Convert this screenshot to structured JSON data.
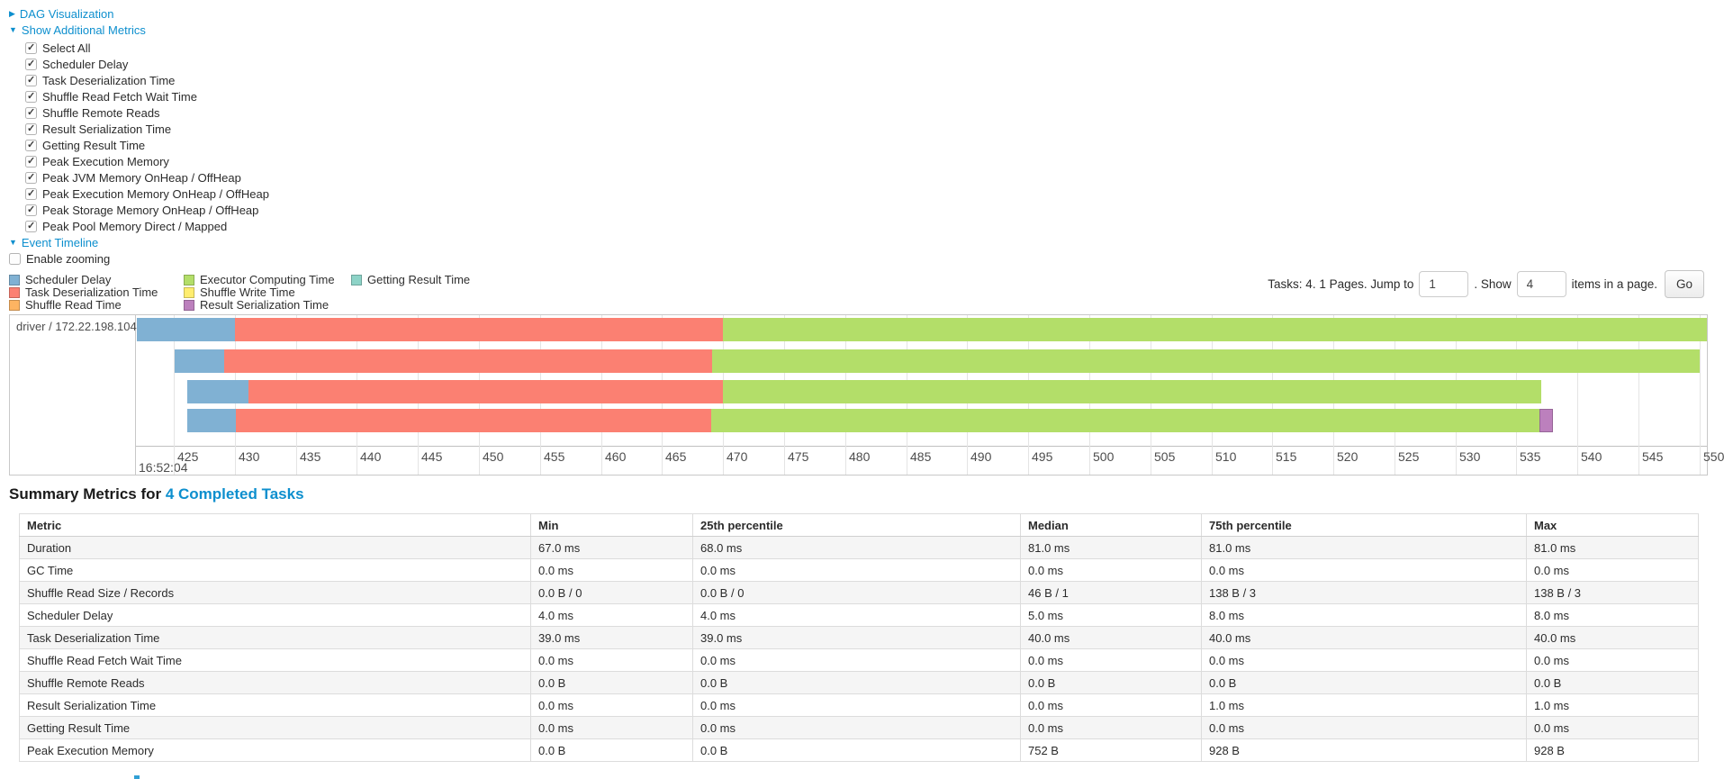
{
  "colors": {
    "link": "#0d8fce",
    "scheduler_delay": "#80B1D3",
    "task_deserialization": "#FB8072",
    "shuffle_read": "#FDB462",
    "executor_computing": "#B3DE69",
    "shuffle_write": "#FFED6F",
    "result_serialization": "#BC80BD",
    "getting_result": "#8DD3C7"
  },
  "sections": {
    "dag": {
      "label": "DAG Visualization",
      "state": "collapsed"
    },
    "additional_metrics": {
      "label": "Show Additional Metrics",
      "state": "expanded"
    },
    "event_timeline": {
      "label": "Event Timeline",
      "state": "expanded"
    }
  },
  "metric_checkboxes": [
    {
      "label": "Select All",
      "checked": true
    },
    {
      "label": "Scheduler Delay",
      "checked": true
    },
    {
      "label": "Task Deserialization Time",
      "checked": true
    },
    {
      "label": "Shuffle Read Fetch Wait Time",
      "checked": true
    },
    {
      "label": "Shuffle Remote Reads",
      "checked": true
    },
    {
      "label": "Result Serialization Time",
      "checked": true
    },
    {
      "label": "Getting Result Time",
      "checked": true
    },
    {
      "label": "Peak Execution Memory",
      "checked": true
    },
    {
      "label": "Peak JVM Memory OnHeap / OffHeap",
      "checked": true
    },
    {
      "label": "Peak Execution Memory OnHeap / OffHeap",
      "checked": true
    },
    {
      "label": "Peak Storage Memory OnHeap / OffHeap",
      "checked": true
    },
    {
      "label": "Peak Pool Memory Direct / Mapped",
      "checked": true
    }
  ],
  "enable_zooming": {
    "label": "Enable zooming",
    "checked": false
  },
  "legend": {
    "columns": [
      [
        {
          "key": "scheduler_delay",
          "label": "Scheduler Delay"
        },
        {
          "key": "task_deserialization",
          "label": "Task Deserialization Time"
        },
        {
          "key": "shuffle_read",
          "label": "Shuffle Read Time"
        }
      ],
      [
        {
          "key": "executor_computing",
          "label": "Executor Computing Time"
        },
        {
          "key": "shuffle_write",
          "label": "Shuffle Write Time"
        },
        {
          "key": "result_serialization",
          "label": "Result Serialization Time"
        }
      ],
      [
        {
          "key": "getting_result",
          "label": "Getting Result Time"
        }
      ]
    ]
  },
  "pagination": {
    "tasks_text": "Tasks: 4. 1 Pages. Jump to",
    "jump_value": "1",
    "show_text": ". Show",
    "show_value": "4",
    "items_text": "items in a page.",
    "go_label": "Go"
  },
  "chart_data": {
    "type": "timeline",
    "group_label": "driver / 172.22.198.104",
    "axis": {
      "min": 421.9,
      "max": 550.6,
      "tick_start": 425,
      "tick_end": 550,
      "tick_step": 5,
      "start_time_label": "16:52:04"
    },
    "tasks": [
      {
        "segments": [
          {
            "type": "scheduler_delay",
            "start": 422.0,
            "end": 430.0
          },
          {
            "type": "task_deserialization",
            "start": 430.0,
            "end": 470.0
          },
          {
            "type": "executor_computing",
            "start": 470.0,
            "end": 551.5
          }
        ]
      },
      {
        "segments": [
          {
            "type": "scheduler_delay",
            "start": 425.1,
            "end": 429.1
          },
          {
            "type": "task_deserialization",
            "start": 429.1,
            "end": 469.1
          },
          {
            "type": "executor_computing",
            "start": 469.1,
            "end": 550.0
          }
        ]
      },
      {
        "segments": [
          {
            "type": "scheduler_delay",
            "start": 426.1,
            "end": 431.1
          },
          {
            "type": "task_deserialization",
            "start": 431.1,
            "end": 470.0
          },
          {
            "type": "executor_computing",
            "start": 470.0,
            "end": 537.0
          }
        ]
      },
      {
        "segments": [
          {
            "type": "scheduler_delay",
            "start": 426.1,
            "end": 430.1
          },
          {
            "type": "task_deserialization",
            "start": 430.1,
            "end": 469.0
          },
          {
            "type": "executor_computing",
            "start": 469.0,
            "end": 536.9
          },
          {
            "type": "result_serialization",
            "start": 536.9,
            "end": 538.0
          }
        ]
      }
    ]
  },
  "summary": {
    "title_prefix": "Summary Metrics for ",
    "title_link": "4 Completed Tasks",
    "table": {
      "columns": [
        "Metric",
        "Min",
        "25th percentile",
        "Median",
        "75th percentile",
        "Max"
      ],
      "rows": [
        {
          "metric": "Duration",
          "values": [
            "67.0 ms",
            "68.0 ms",
            "81.0 ms",
            "81.0 ms",
            "81.0 ms"
          ]
        },
        {
          "metric": "GC Time",
          "values": [
            "0.0 ms",
            "0.0 ms",
            "0.0 ms",
            "0.0 ms",
            "0.0 ms"
          ]
        },
        {
          "metric": "Shuffle Read Size / Records",
          "values": [
            "0.0 B / 0",
            "0.0 B / 0",
            "46 B / 1",
            "138 B / 3",
            "138 B / 3"
          ]
        },
        {
          "metric": "Scheduler Delay",
          "values": [
            "4.0 ms",
            "4.0 ms",
            "5.0 ms",
            "8.0 ms",
            "8.0 ms"
          ]
        },
        {
          "metric": "Task Deserialization Time",
          "values": [
            "39.0 ms",
            "39.0 ms",
            "40.0 ms",
            "40.0 ms",
            "40.0 ms"
          ]
        },
        {
          "metric": "Shuffle Read Fetch Wait Time",
          "values": [
            "0.0 ms",
            "0.0 ms",
            "0.0 ms",
            "0.0 ms",
            "0.0 ms"
          ]
        },
        {
          "metric": "Shuffle Remote Reads",
          "values": [
            "0.0 B",
            "0.0 B",
            "0.0 B",
            "0.0 B",
            "0.0 B"
          ]
        },
        {
          "metric": "Result Serialization Time",
          "values": [
            "0.0 ms",
            "0.0 ms",
            "0.0 ms",
            "1.0 ms",
            "1.0 ms"
          ]
        },
        {
          "metric": "Getting Result Time",
          "values": [
            "0.0 ms",
            "0.0 ms",
            "0.0 ms",
            "0.0 ms",
            "0.0 ms"
          ]
        },
        {
          "metric": "Peak Execution Memory",
          "values": [
            "0.0 B",
            "0.0 B",
            "752 B",
            "928 B",
            "928 B"
          ]
        }
      ]
    }
  }
}
